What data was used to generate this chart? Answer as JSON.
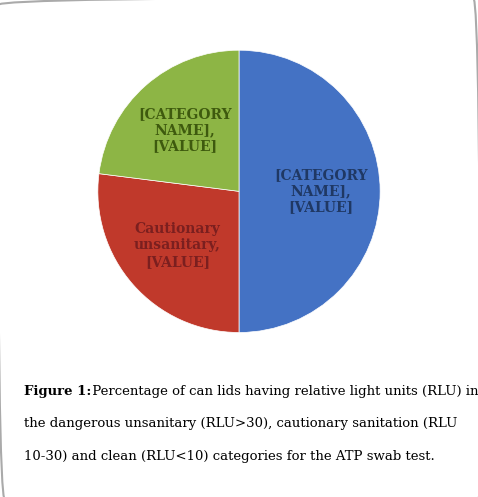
{
  "slices": [
    {
      "label": "[CATEGORY\nNAME],\n[VALUE]",
      "value": 50,
      "color": "#4472C4",
      "label_color": "#1F3864"
    },
    {
      "label": "Cautionary\nunsanitary,\n[VALUE]",
      "value": 27,
      "color": "#C0392B",
      "label_color": "#7B1F1F"
    },
    {
      "label": "[CATEGORY\nNAME],\n[VALUE]",
      "value": 23,
      "color": "#8DB545",
      "label_color": "#3E5A0E"
    }
  ],
  "startangle": 90,
  "counterclock": false,
  "label_r": 0.58,
  "caption_bold": "Figure 1:",
  "caption_line1": " Percentage of can lids having relative light units (RLU) in",
  "caption_line2": "the dangerous unsanitary (RLU>30), cautionary sanitation (RLU",
  "caption_line3": "10-30) and clean (RLU<10) categories for the ATP swab test.",
  "background_color": "#ffffff",
  "border_color": "#aaaaaa",
  "label_fontsize": 10,
  "caption_fontsize": 9.5
}
